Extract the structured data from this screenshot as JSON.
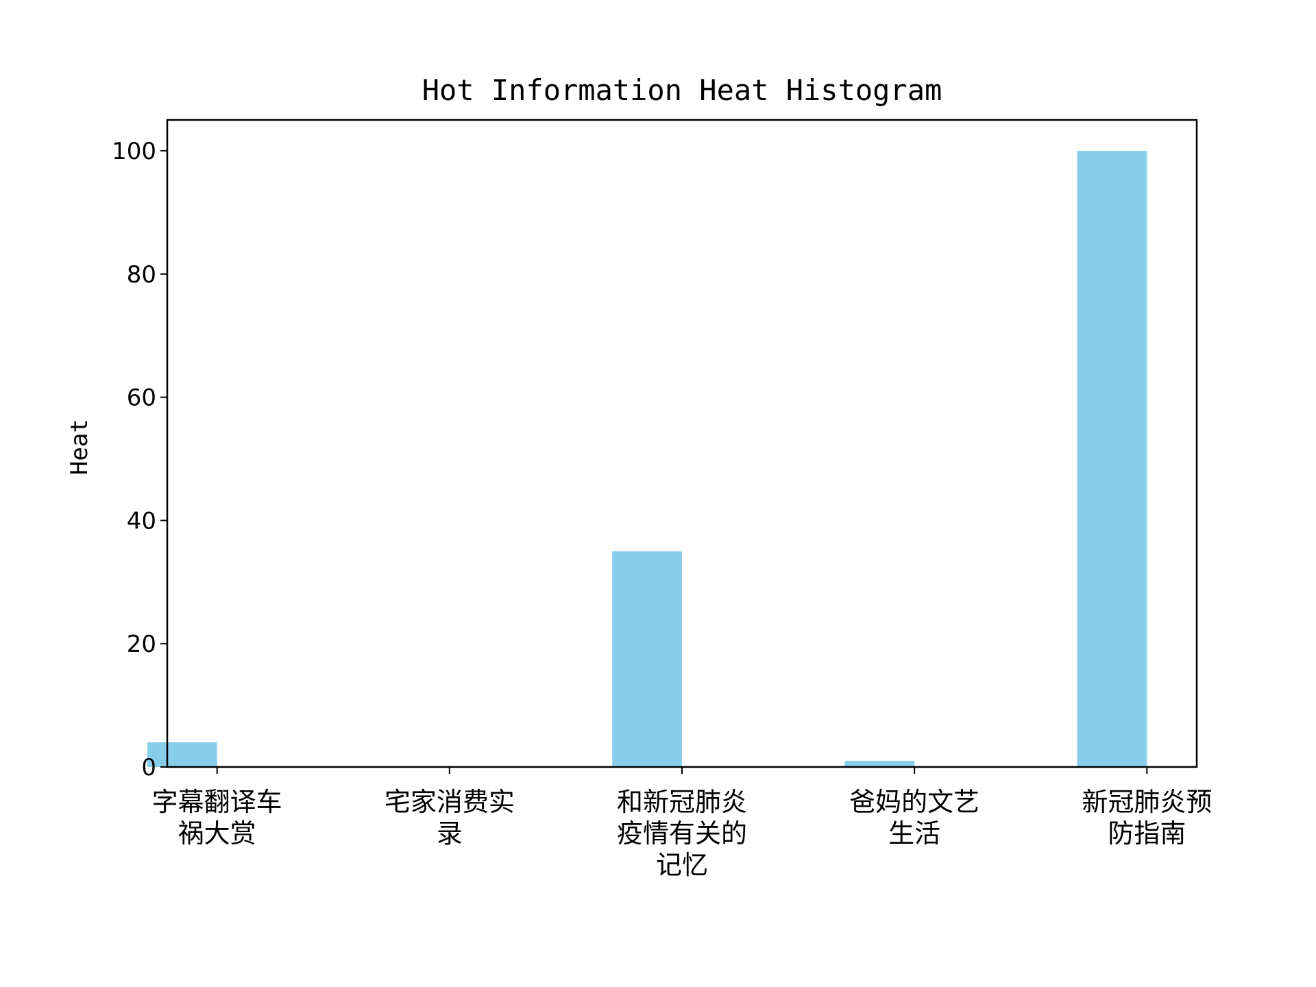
{
  "chart_data": {
    "type": "bar",
    "title": "Hot Information Heat Histogram",
    "xlabel": "",
    "ylabel": "Heat",
    "categories": [
      [
        "字幕翻译车",
        "祸大赏"
      ],
      [
        "宅家消费实",
        "录"
      ],
      [
        "和新冠肺炎",
        "疫情有关的",
        "记忆"
      ],
      [
        "爸妈的文艺",
        "生活"
      ],
      [
        "新冠肺炎预",
        "防指南"
      ]
    ],
    "values": [
      4,
      0,
      35,
      1,
      100
    ],
    "ylim": [
      0,
      105
    ],
    "yticks": [
      0,
      20,
      40,
      60,
      80,
      100
    ],
    "bar_color": "#87ceeb",
    "grid": false,
    "legend": "none"
  }
}
